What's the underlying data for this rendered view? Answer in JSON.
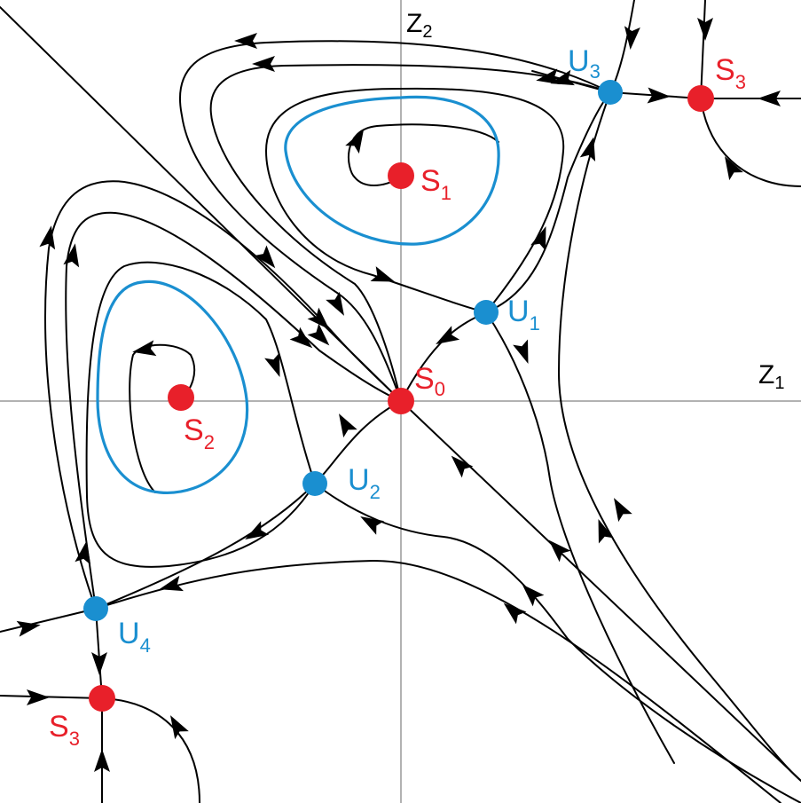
{
  "axes": {
    "z1_label": "Z",
    "z1_sub": "1",
    "z2_label": "Z",
    "z2_sub": "2"
  },
  "colors": {
    "stable": "#e8202a",
    "unstable": "#1a8fd0",
    "limit_cycle": "#1a8fd0",
    "trajectory": "#000000",
    "axis": "#666666"
  },
  "points": {
    "s0": {
      "label": "S",
      "sub": "0"
    },
    "s1": {
      "label": "S",
      "sub": "1"
    },
    "s2": {
      "label": "S",
      "sub": "2"
    },
    "s3a": {
      "label": "S",
      "sub": "3"
    },
    "s3b": {
      "label": "S",
      "sub": "3"
    },
    "u1": {
      "label": "U",
      "sub": "1"
    },
    "u2": {
      "label": "U",
      "sub": "2"
    },
    "u3": {
      "label": "U",
      "sub": "3"
    },
    "u4": {
      "label": "U",
      "sub": "4"
    }
  }
}
